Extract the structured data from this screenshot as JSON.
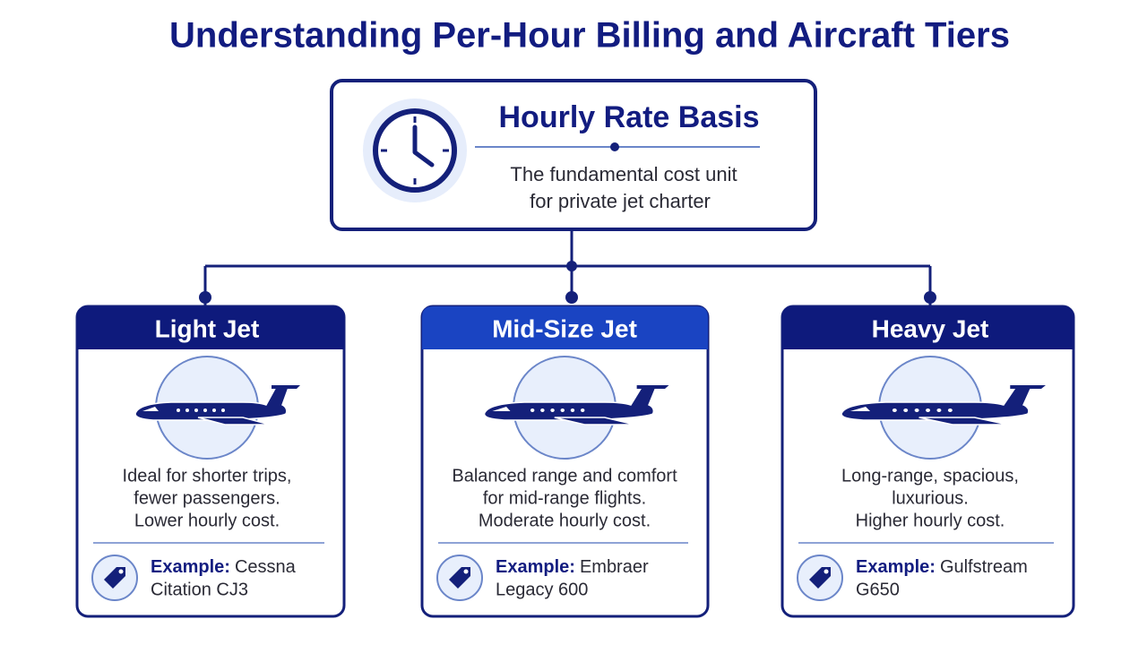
{
  "header": {
    "title": "Understanding Per-Hour Billing and Aircraft Tiers"
  },
  "root": {
    "heading": "Hourly Rate Basis",
    "description": [
      "The fundamental cost unit",
      "for private jet charter"
    ]
  },
  "tiers": [
    {
      "name": "Light Jet",
      "description": [
        "Ideal for shorter trips,",
        "fewer passengers.",
        "Lower hourly cost."
      ],
      "example": {
        "label": "Example:",
        "lines": [
          "Cessna",
          "Citation CJ3"
        ]
      }
    },
    {
      "name": "Mid-Size Jet",
      "description": [
        "Balanced range and comfort",
        "for mid-range flights.",
        "Moderate hourly cost."
      ],
      "example": {
        "label": "Example:",
        "lines": [
          "Embraer",
          "Legacy 600"
        ]
      }
    },
    {
      "name": "Heavy Jet",
      "description": [
        "Long-range, spacious,",
        "luxurious.",
        "Higher hourly cost."
      ],
      "example": {
        "label": "Example:",
        "lines": [
          "Gulfstream",
          "G650"
        ]
      }
    }
  ]
}
